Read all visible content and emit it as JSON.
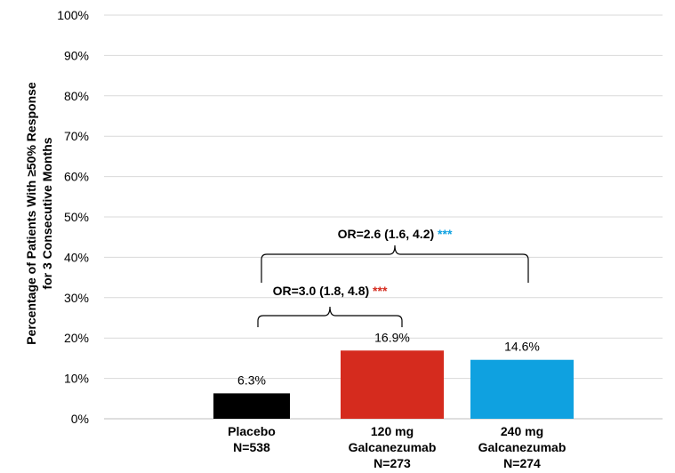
{
  "chart_data": {
    "type": "bar",
    "ylabel": [
      "Percentage of Patients With ≥50% Response",
      "for 3 Consecutive Months"
    ],
    "ylim": [
      0,
      100
    ],
    "ytick_labels": [
      "0%",
      "10%",
      "20%",
      "30%",
      "40%",
      "50%",
      "60%",
      "70%",
      "80%",
      "90%",
      "100%"
    ],
    "grid": true,
    "categories": [
      [
        "Placebo",
        "N=538"
      ],
      [
        "120 mg",
        "Galcanezumab",
        "N=273"
      ],
      [
        "240 mg",
        "Galcanezumab",
        "N=274"
      ]
    ],
    "values": [
      6.3,
      16.9,
      14.6
    ],
    "value_labels": [
      "6.3%",
      "16.9%",
      "14.6%"
    ],
    "colors": [
      "#000000",
      "#d52b1e",
      "#0fa1e0"
    ],
    "annotations": [
      {
        "text": "OR=3.0 (1.8, 4.8)",
        "stars": "***",
        "stars_color": "#d52b1e",
        "from": 0,
        "to": 1
      },
      {
        "text": "OR=2.6 (1.6, 4.2)",
        "stars": "***",
        "stars_color": "#0fa1e0",
        "from": 0,
        "to": 2
      }
    ]
  }
}
